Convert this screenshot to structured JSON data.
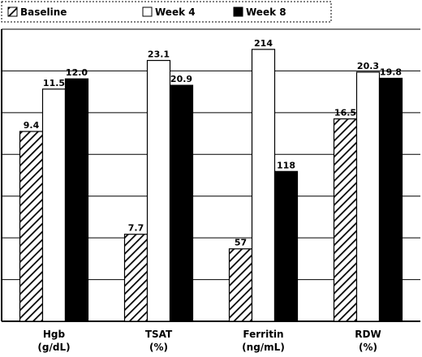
{
  "chart_data": {
    "type": "bar",
    "title": "",
    "xlabel": "",
    "ylabel": "",
    "categories": [
      [
        "Hgb",
        "(g/dL)"
      ],
      [
        "TSAT",
        "(%)"
      ],
      [
        "Ferritin",
        "(ng/mL)"
      ],
      [
        "RDW",
        "(%)"
      ]
    ],
    "series": [
      {
        "name": "Baseline",
        "style": "hatched",
        "values": [
          9.4,
          7.7,
          57,
          16.5
        ],
        "labels": [
          "9.4",
          "7.7",
          "57",
          "16.5"
        ],
        "fill_fraction": [
          0.65,
          0.298,
          0.248,
          0.693
        ]
      },
      {
        "name": "Week 4",
        "style": "white",
        "values": [
          11.5,
          23.1,
          214,
          20.3
        ],
        "labels": [
          "11.5",
          "23.1",
          "214",
          "20.3"
        ],
        "fill_fraction": [
          0.795,
          0.893,
          0.931,
          0.853
        ]
      },
      {
        "name": "Week 8",
        "style": "black",
        "values": [
          12.0,
          20.9,
          118,
          19.8
        ],
        "labels": [
          "12.0",
          "20.9",
          "118",
          "19.8"
        ],
        "fill_fraction": [
          0.83,
          0.808,
          0.513,
          0.832
        ]
      }
    ],
    "grid": true,
    "legend_position": "top"
  },
  "colors": {
    "bar_outline": "#000000",
    "week4_fill": "#ffffff",
    "week8_fill": "#000000",
    "hatch": "#000000",
    "gridline": "#000000"
  }
}
